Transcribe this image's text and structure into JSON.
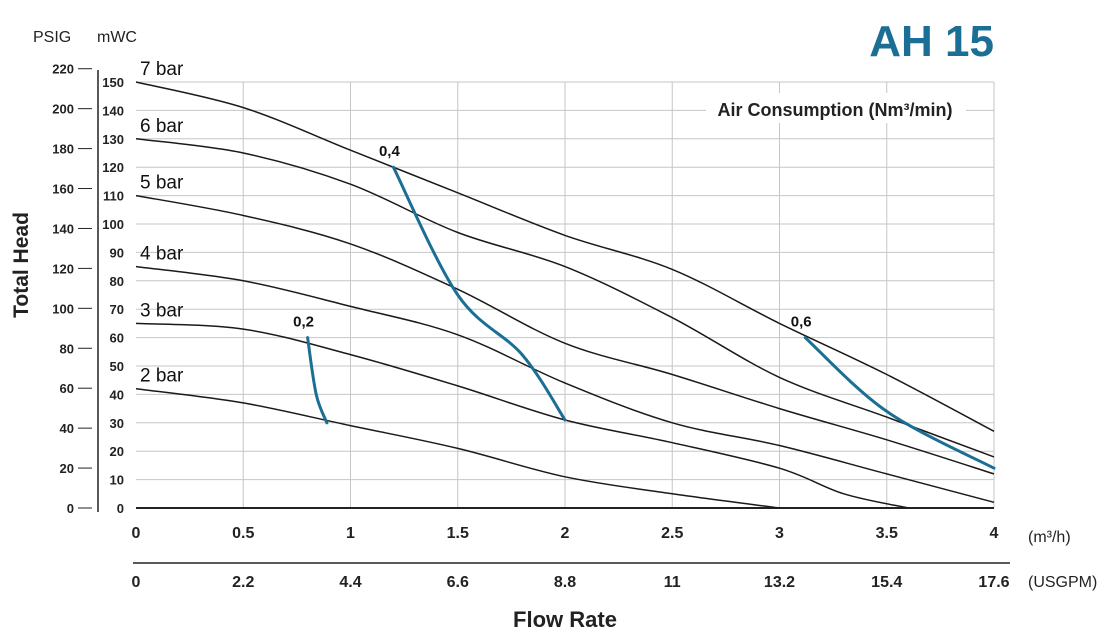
{
  "brand_color": "#1b6f94",
  "title": "AH 15",
  "left_units": {
    "psig": "PSIG",
    "mwc": "mWC"
  },
  "ylabel": "Total Head",
  "xlabel": "Flow Rate",
  "x_unit_top": "(m³/h)",
  "x_unit_bottom": "(USGPM)",
  "air_label": "Air Consumption (Nm³/min)",
  "chart_data": {
    "type": "line",
    "title": "AH 15",
    "xlabel": "Flow Rate",
    "ylabel": "Total Head",
    "x_unit": "m³/h",
    "xlim": [
      0,
      4
    ],
    "ylim": [
      0,
      150
    ],
    "grid": true,
    "x_ticks": [
      {
        "v": 0,
        "label": "0"
      },
      {
        "v": 0.5,
        "label": "0.5"
      },
      {
        "v": 1,
        "label": "1"
      },
      {
        "v": 1.5,
        "label": "1.5"
      },
      {
        "v": 2,
        "label": "2"
      },
      {
        "v": 2.5,
        "label": "2.5"
      },
      {
        "v": 3,
        "label": "3"
      },
      {
        "v": 3.5,
        "label": "3.5"
      },
      {
        "v": 4,
        "label": "4"
      }
    ],
    "x2_ticks": [
      {
        "v": 0,
        "label": "0"
      },
      {
        "v": 0.5,
        "label": "2.2"
      },
      {
        "v": 1,
        "label": "4.4"
      },
      {
        "v": 1.5,
        "label": "6.6"
      },
      {
        "v": 2,
        "label": "8.8"
      },
      {
        "v": 2.5,
        "label": "11"
      },
      {
        "v": 3,
        "label": "13.2"
      },
      {
        "v": 3.5,
        "label": "15.4"
      },
      {
        "v": 4,
        "label": "17.6"
      }
    ],
    "mwc_ticks": [
      "0",
      "10",
      "20",
      "30",
      "40",
      "50",
      "60",
      "70",
      "80",
      "90",
      "100",
      "110",
      "120",
      "130",
      "140",
      "150"
    ],
    "psig_ticks": [
      {
        "v": 0,
        "label": "0"
      },
      {
        "v": 20,
        "label": "20"
      },
      {
        "v": 40,
        "label": "40"
      },
      {
        "v": 60,
        "label": "60"
      },
      {
        "v": 80,
        "label": "80"
      },
      {
        "v": 100,
        "label": "100"
      },
      {
        "v": 120,
        "label": "120"
      },
      {
        "v": 140,
        "label": "140"
      },
      {
        "v": 160,
        "label": "160"
      },
      {
        "v": 180,
        "label": "180"
      },
      {
        "v": 200,
        "label": "200"
      },
      {
        "v": 220,
        "label": "220"
      }
    ],
    "series": [
      {
        "name": "7 bar",
        "points": [
          [
            0,
            150
          ],
          [
            0.5,
            141
          ],
          [
            1,
            126
          ],
          [
            1.5,
            111
          ],
          [
            2,
            96
          ],
          [
            2.5,
            84
          ],
          [
            3,
            65
          ],
          [
            3.5,
            47
          ],
          [
            4,
            27
          ]
        ]
      },
      {
        "name": "6 bar",
        "points": [
          [
            0,
            130
          ],
          [
            0.5,
            125
          ],
          [
            1,
            114
          ],
          [
            1.5,
            97
          ],
          [
            2,
            85
          ],
          [
            2.5,
            67
          ],
          [
            3,
            46
          ],
          [
            3.5,
            32
          ],
          [
            4,
            18
          ]
        ]
      },
      {
        "name": "5 bar",
        "points": [
          [
            0,
            110
          ],
          [
            0.5,
            103
          ],
          [
            1,
            93
          ],
          [
            1.5,
            77
          ],
          [
            2,
            58
          ],
          [
            2.5,
            47
          ],
          [
            3,
            35
          ],
          [
            3.5,
            24
          ],
          [
            4,
            12
          ]
        ]
      },
      {
        "name": "4 bar",
        "points": [
          [
            0,
            85
          ],
          [
            0.5,
            80
          ],
          [
            1,
            71
          ],
          [
            1.5,
            61
          ],
          [
            2,
            44
          ],
          [
            2.5,
            30
          ],
          [
            3,
            22
          ],
          [
            3.5,
            12
          ],
          [
            4,
            2
          ]
        ]
      },
      {
        "name": "3 bar",
        "points": [
          [
            0,
            65
          ],
          [
            0.5,
            63
          ],
          [
            1,
            54
          ],
          [
            1.5,
            43
          ],
          [
            2,
            31
          ],
          [
            2.5,
            23
          ],
          [
            3,
            14
          ],
          [
            3.3,
            5
          ],
          [
            3.6,
            0
          ]
        ]
      },
      {
        "name": "2 bar",
        "points": [
          [
            0,
            42
          ],
          [
            0.5,
            37
          ],
          [
            1,
            29
          ],
          [
            1.5,
            21
          ],
          [
            2,
            11
          ],
          [
            2.5,
            5
          ],
          [
            3,
            0
          ]
        ]
      }
    ],
    "air_consumption": [
      {
        "name": "0,2",
        "points": [
          [
            0.8,
            60
          ],
          [
            0.84,
            40
          ],
          [
            0.89,
            30
          ]
        ]
      },
      {
        "name": "0,4",
        "points": [
          [
            1.2,
            120
          ],
          [
            1.5,
            75
          ],
          [
            1.8,
            54
          ],
          [
            2,
            31
          ]
        ]
      },
      {
        "name": "0,6",
        "points": [
          [
            3.12,
            60
          ],
          [
            3.5,
            34
          ],
          [
            4,
            14
          ]
        ]
      }
    ]
  }
}
